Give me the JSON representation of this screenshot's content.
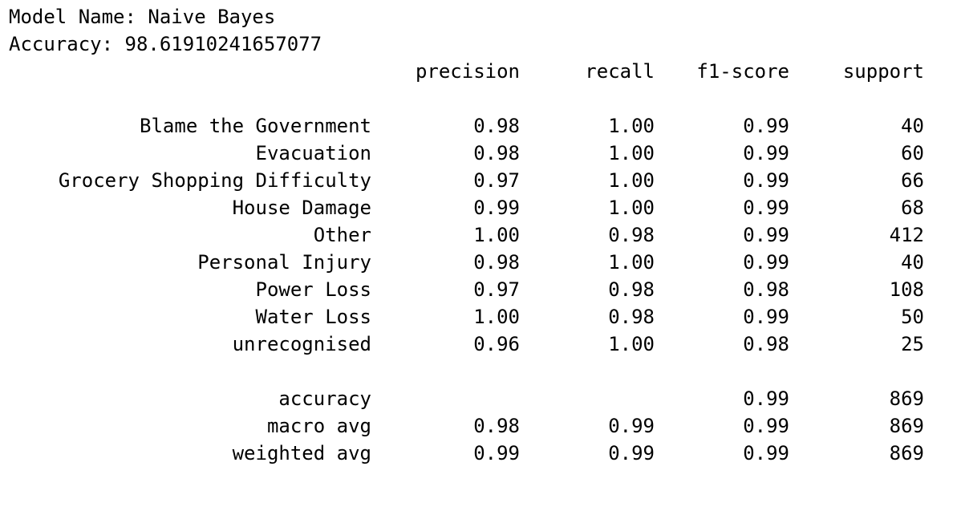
{
  "model_line": "Model Name: Naive Bayes",
  "accuracy_line": "Accuracy: 98.61910241657077",
  "headers": {
    "precision": "precision",
    "recall": "recall",
    "f1": "f1-score",
    "support": "support"
  },
  "classes": [
    {
      "label": "Blame the Government",
      "precision": "0.98",
      "recall": "1.00",
      "f1": "0.99",
      "support": "40"
    },
    {
      "label": "Evacuation",
      "precision": "0.98",
      "recall": "1.00",
      "f1": "0.99",
      "support": "60"
    },
    {
      "label": "Grocery Shopping Difficulty",
      "precision": "0.97",
      "recall": "1.00",
      "f1": "0.99",
      "support": "66"
    },
    {
      "label": "House Damage",
      "precision": "0.99",
      "recall": "1.00",
      "f1": "0.99",
      "support": "68"
    },
    {
      "label": "Other",
      "precision": "1.00",
      "recall": "0.98",
      "f1": "0.99",
      "support": "412"
    },
    {
      "label": "Personal Injury",
      "precision": "0.98",
      "recall": "1.00",
      "f1": "0.99",
      "support": "40"
    },
    {
      "label": "Power Loss",
      "precision": "0.97",
      "recall": "0.98",
      "f1": "0.98",
      "support": "108"
    },
    {
      "label": "Water Loss",
      "precision": "1.00",
      "recall": "0.98",
      "f1": "0.99",
      "support": "50"
    },
    {
      "label": "unrecognised",
      "precision": "0.96",
      "recall": "1.00",
      "f1": "0.98",
      "support": "25"
    }
  ],
  "summary": [
    {
      "label": "accuracy",
      "precision": "",
      "recall": "",
      "f1": "0.99",
      "support": "869"
    },
    {
      "label": "macro avg",
      "precision": "0.98",
      "recall": "0.99",
      "f1": "0.99",
      "support": "869"
    },
    {
      "label": "weighted avg",
      "precision": "0.99",
      "recall": "0.99",
      "f1": "0.99",
      "support": "869"
    }
  ]
}
